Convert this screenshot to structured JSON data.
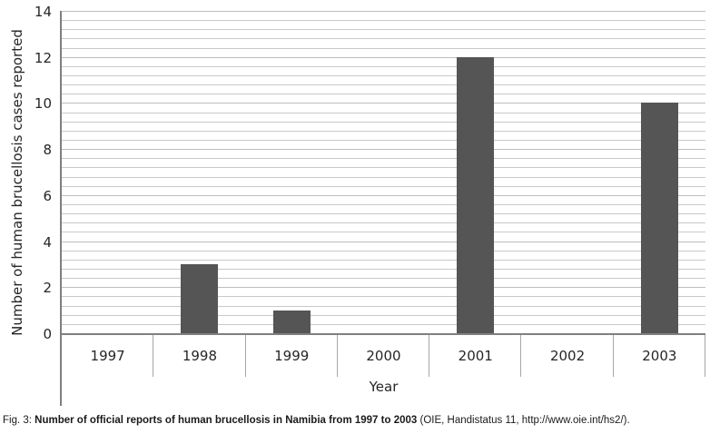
{
  "chart_data": {
    "type": "bar",
    "categories": [
      "1997",
      "1998",
      "1999",
      "2000",
      "2001",
      "2002",
      "2003"
    ],
    "values": [
      0,
      3,
      1,
      0,
      12,
      0,
      10
    ],
    "title": "",
    "xlabel": "Year",
    "ylabel": "Number of human brucellosis cases reported",
    "ylim": [
      0,
      14
    ],
    "y_ticks": [
      0,
      2,
      4,
      6,
      8,
      10,
      12,
      14
    ],
    "minor_gridline_unit": 0.4,
    "grid": "horizontal",
    "legend_position": "none",
    "bar_color": "#555555",
    "gridline_color": "#c9c9c9",
    "axis_color": "#7f7f7f",
    "text_color": "#262626"
  },
  "caption": {
    "fig_label": "Fig. 3: ",
    "bold_text": "Number of official reports of human brucellosis in Namibia from 1997 to 2003",
    "source_text": " (OIE, Handistatus 11, http://www.oie.int/hs2/)."
  }
}
